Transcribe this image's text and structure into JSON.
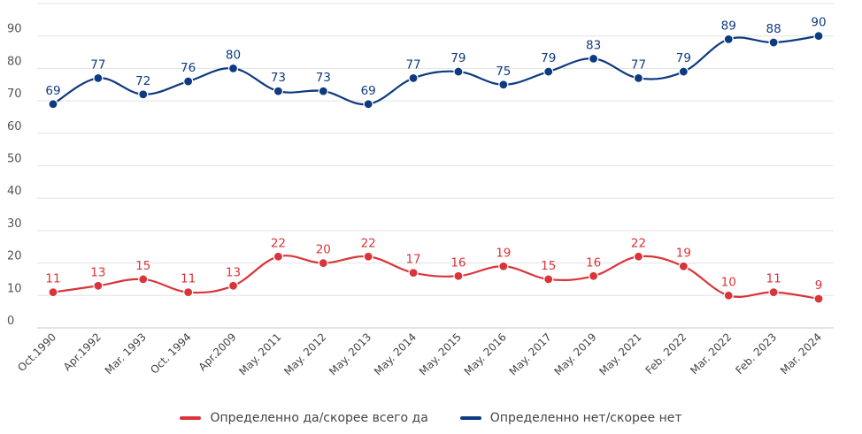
{
  "chart_data": {
    "type": "line",
    "categories": [
      "Oct.1990",
      "Apr.1992",
      "Mar. 1993",
      "Oct. 1994",
      "Apr.2009",
      "May. 2011",
      "May. 2012",
      "May. 2013",
      "May. 2014",
      "May. 2015",
      "May. 2016",
      "May. 2017",
      "May. 2019",
      "May. 2021",
      "Feb. 2022",
      "Mar. 2022",
      "Feb. 2023",
      "Mar. 2024"
    ],
    "series": [
      {
        "name": "Определенно да/скорее всего да",
        "color": "#d9343a",
        "values": [
          11,
          13,
          15,
          11,
          13,
          22,
          20,
          22,
          17,
          16,
          19,
          15,
          16,
          22,
          19,
          10,
          11,
          9
        ]
      },
      {
        "name": "Определенно нет/скорее нет",
        "color": "#0d3a80",
        "values": [
          69,
          77,
          72,
          76,
          80,
          73,
          73,
          69,
          77,
          79,
          75,
          79,
          83,
          77,
          79,
          89,
          88,
          90
        ]
      }
    ],
    "y_ticks": [
      0,
      10,
      20,
      30,
      40,
      50,
      60,
      70,
      80,
      90
    ],
    "ylim": [
      0,
      100
    ],
    "grid": true,
    "legend_position": "bottom"
  }
}
